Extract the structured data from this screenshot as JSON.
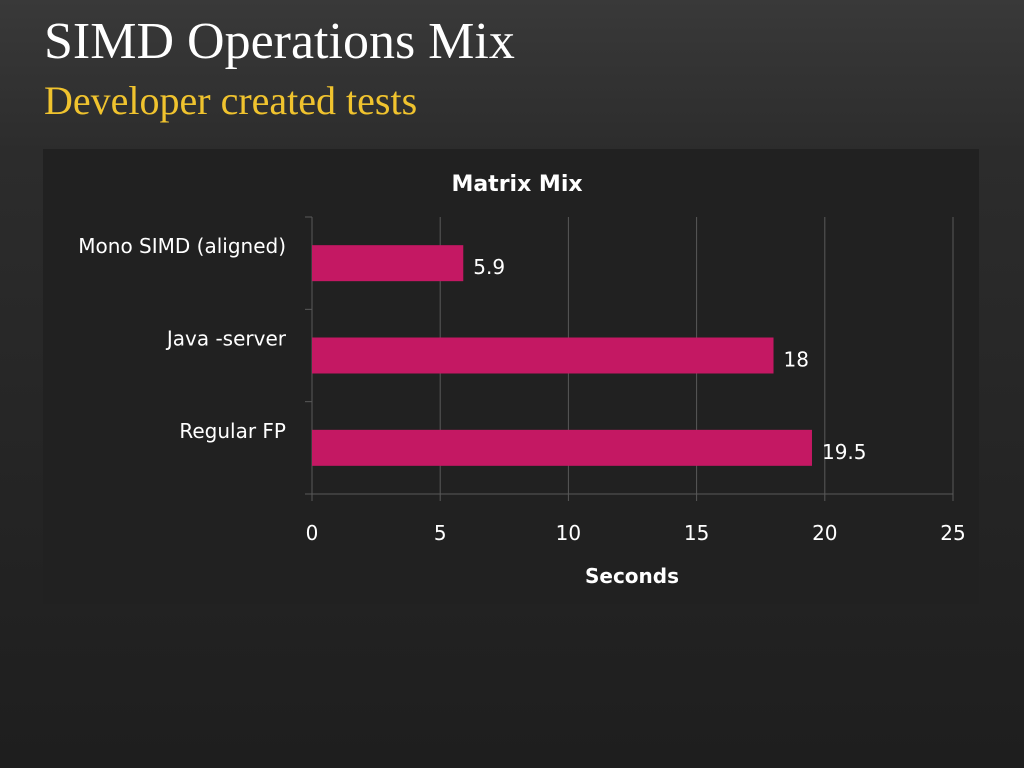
{
  "slide": {
    "title": "SIMD Operations Mix",
    "subtitle": "Developer created tests"
  },
  "colors": {
    "bar": "#c41863",
    "title": "#ffffff",
    "subtitle": "#f0c32e",
    "gridline": "#595959",
    "text": "#ffffff"
  },
  "chart_data": {
    "type": "bar",
    "orientation": "horizontal",
    "title": "Matrix Mix",
    "xlabel": "Seconds",
    "ylabel": "",
    "categories": [
      "Mono SIMD (aligned)",
      "Java -server",
      "Regular FP"
    ],
    "values": [
      5.9,
      18,
      19.5
    ],
    "data_labels": [
      "5.9",
      "18",
      "19.5"
    ],
    "xlim": [
      0,
      25
    ],
    "xticks": [
      0,
      5,
      10,
      15,
      20,
      25
    ],
    "grid": true,
    "legend": "none"
  }
}
